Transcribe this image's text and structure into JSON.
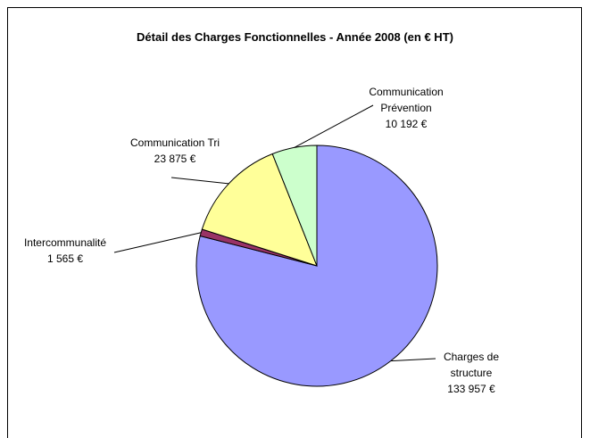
{
  "chart_data": {
    "type": "pie",
    "title": "Détail des Charges Fonctionnelles - Année 2008 (en € HT)",
    "categories": [
      "Charges de structure",
      "Intercommunalité",
      "Communication Tri",
      "Communication Prévention"
    ],
    "values": [
      133957,
      1565,
      23875,
      10192
    ],
    "value_labels": [
      "133 957 €",
      "1 565 €",
      "23 875 €",
      "10 192 €"
    ],
    "colors": [
      "#9999ff",
      "#993366",
      "#ffff99",
      "#ccffcc"
    ]
  }
}
